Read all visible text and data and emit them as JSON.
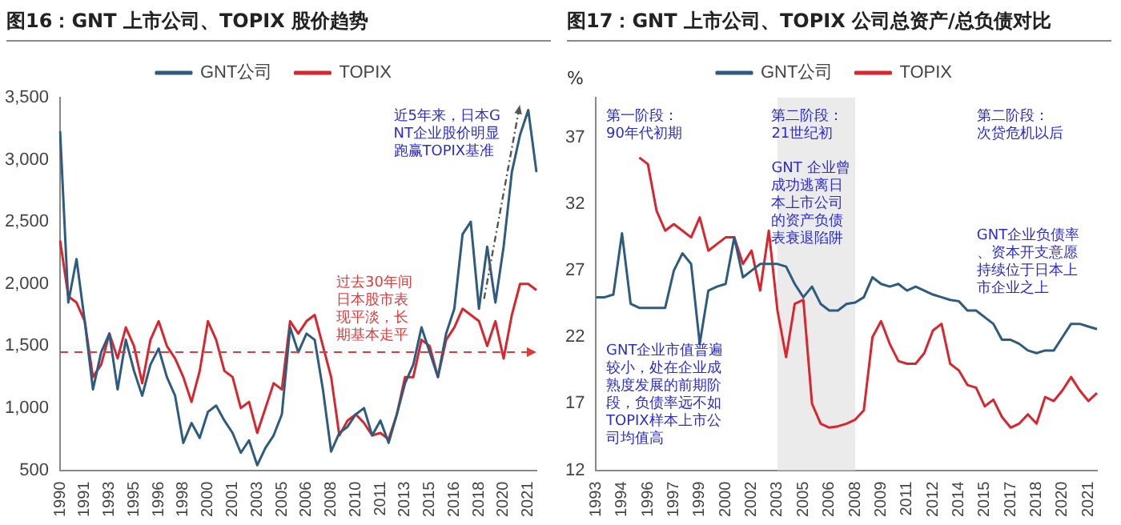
{
  "chart_data": [
    {
      "type": "line",
      "title": "图16：GNT 上市公司、TOPIX 股价趋势",
      "categories": [
        "1990",
        null,
        null,
        "1991",
        null,
        null,
        "1993",
        null,
        null,
        "1995",
        null,
        null,
        "1996",
        null,
        null,
        "1998",
        null,
        null,
        "2000",
        null,
        null,
        "2001",
        null,
        null,
        "2003",
        null,
        null,
        "2005",
        null,
        null,
        "2006",
        null,
        null,
        "2008",
        null,
        null,
        "2010",
        null,
        null,
        "2011",
        null,
        null,
        "2013",
        null,
        null,
        "2015",
        null,
        null,
        "2016",
        null,
        null,
        "2018",
        null,
        null,
        "2020",
        null,
        null,
        "2021",
        null
      ],
      "series": [
        {
          "name": "GNT公司",
          "color": "#2e5b80",
          "values": [
            3230,
            1850,
            2200,
            1700,
            1150,
            1450,
            1600,
            1150,
            1550,
            1300,
            1100,
            1350,
            1480,
            1250,
            1100,
            720,
            880,
            760,
            970,
            1020,
            900,
            800,
            640,
            740,
            540,
            680,
            780,
            950,
            1650,
            1450,
            1600,
            1550,
            1150,
            650,
            800,
            850,
            950,
            1000,
            780,
            900,
            720,
            950,
            1200,
            1350,
            1650,
            1450,
            1250,
            1600,
            1800,
            2400,
            2500,
            1800,
            2300,
            1850,
            2300,
            2900,
            3200,
            3400,
            2900
          ]
        },
        {
          "name": "TOPIX",
          "color": "#d9262e",
          "values": [
            2350,
            1900,
            1850,
            1700,
            1250,
            1350,
            1600,
            1400,
            1650,
            1500,
            1200,
            1550,
            1700,
            1500,
            1400,
            1250,
            1050,
            1300,
            1700,
            1550,
            1300,
            1250,
            1000,
            1050,
            800,
            1000,
            1200,
            1150,
            1700,
            1600,
            1700,
            1750,
            1500,
            1250,
            780,
            900,
            950,
            880,
            780,
            800,
            750,
            950,
            1250,
            1250,
            1550,
            1500,
            1250,
            1550,
            1650,
            1800,
            1750,
            1700,
            1500,
            1700,
            1400,
            1750,
            2000,
            2000,
            1950
          ]
        }
      ],
      "ylim": [
        500,
        3500
      ],
      "yticks": [
        500,
        {
          "value": 1000,
          "label": "1,000"
        },
        {
          "value": 1500,
          "label": "1,500"
        },
        {
          "value": 2000,
          "label": "2,000"
        },
        {
          "value": 2500,
          "label": "2,500"
        },
        {
          "value": 3000,
          "label": "3,000"
        },
        {
          "value": 3500,
          "label": "3,500"
        }
      ],
      "grid": false,
      "legend": "top",
      "marker": "none",
      "ref_lines": [
        {
          "axis": "y",
          "value": 1450,
          "label": "过去30年间日本股市表现平淡，长期基本走平",
          "color": "#e03a3a",
          "line_style": "dashed"
        }
      ],
      "annotations": [
        "近5年来，日本GNT企业股价明显跑赢TOPIX基准"
      ]
    },
    {
      "type": "line",
      "title": "图17：GNT 上市公司、TOPIX 公司总资产/总负债对比",
      "ylabel": "%",
      "categories": [
        "1993",
        null,
        null,
        "1994",
        null,
        null,
        "1996",
        null,
        null,
        "1997",
        null,
        null,
        "1999",
        null,
        null,
        "2000",
        null,
        null,
        "2002",
        null,
        null,
        "2003",
        null,
        null,
        "2005",
        null,
        null,
        "2006",
        null,
        null,
        "2008",
        null,
        null,
        "2009",
        null,
        null,
        "2011",
        null,
        null,
        "2012",
        null,
        null,
        "2014",
        null,
        null,
        "2015",
        null,
        null,
        "2017",
        null,
        null,
        "2018",
        null,
        null,
        "2020",
        null,
        null,
        "2021",
        null
      ],
      "series": [
        {
          "name": "GNT公司",
          "color": "#2e5b80",
          "values": [
            25.0,
            25.0,
            25.2,
            29.8,
            24.5,
            24.2,
            24.2,
            24.2,
            24.2,
            27.0,
            28.3,
            27.5,
            21.5,
            25.5,
            25.8,
            26.0,
            29.5,
            26.5,
            27.0,
            27.5,
            27.5,
            27.5,
            27.3,
            26.0,
            25.0,
            25.8,
            24.5,
            24.0,
            24.0,
            24.5,
            24.6,
            25.0,
            26.5,
            26.0,
            25.8,
            26.0,
            25.5,
            25.8,
            25.5,
            25.2,
            25.0,
            24.8,
            24.7,
            24.0,
            24.0,
            23.5,
            23.0,
            21.8,
            21.8,
            21.5,
            21.0,
            20.8,
            21.0,
            21.0,
            22.0,
            23.0,
            23.0,
            22.8,
            22.6
          ]
        },
        {
          "name": "TOPIX",
          "color": "#d9262e",
          "values": [
            null,
            null,
            null,
            null,
            null,
            35.5,
            35.0,
            31.5,
            30.0,
            30.5,
            30.0,
            29.5,
            31.0,
            28.5,
            29.0,
            29.5,
            29.5,
            27.5,
            28.5,
            25.5,
            30.0,
            24.0,
            20.5,
            24.5,
            24.8,
            17.0,
            15.5,
            15.2,
            15.3,
            15.5,
            15.8,
            16.5,
            22.0,
            23.2,
            21.5,
            20.2,
            20.0,
            20.0,
            20.8,
            22.5,
            23.0,
            20.0,
            19.5,
            18.4,
            18.2,
            16.8,
            17.3,
            16.0,
            15.2,
            15.5,
            16.2,
            15.5,
            17.5,
            17.2,
            18.0,
            19.0,
            18.0,
            17.2,
            17.8
          ]
        }
      ],
      "ylim": [
        12,
        40
      ],
      "yticks": [
        12,
        17,
        22,
        27,
        32,
        37
      ],
      "grid": false,
      "legend": "top",
      "marker": "none",
      "bands": [
        {
          "axis": "x",
          "from": "2003",
          "to": "2008",
          "color": "#ebebeb"
        }
      ],
      "annotations": [
        "第一阶段：90年代初期",
        "第二阶段：21世纪初",
        "第二阶段：次贷危机以后",
        "GNT 企业曾成功逃离日本上市公司的资产负债表衰退陷阱",
        "GNT企业负债率、资本开支意愿持续位于日本上市企业之上",
        "GNT企业市值普遍较小，处在企业成熟度发展的前期阶段，负债率远不如TOPIX样本上市公司均值高"
      ]
    }
  ]
}
